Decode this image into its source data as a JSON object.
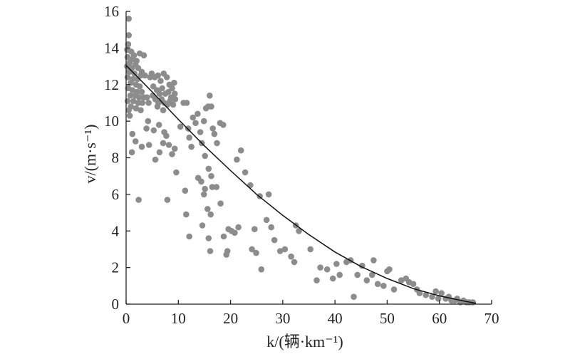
{
  "chart_data": {
    "type": "scatter",
    "xlabel": "k/(辆·km⁻¹)",
    "ylabel": "v/(m·s⁻¹)",
    "xlim": [
      0,
      70
    ],
    "ylim": [
      0,
      16
    ],
    "x_ticks": [
      "0",
      "10",
      "20",
      "30",
      "40",
      "50",
      "60",
      "70"
    ],
    "y_ticks": [
      "0",
      "2",
      "4",
      "6",
      "8",
      "10",
      "12",
      "14",
      "16"
    ],
    "grid": false,
    "colors": {
      "points": "#8c8c8c",
      "curve": "#111111",
      "axes": "#222222"
    },
    "series": [
      {
        "type": "scatter",
        "points": [
          [
            0.5,
            15.6
          ],
          [
            0.5,
            14.7
          ],
          [
            0.4,
            14.2
          ],
          [
            0.2,
            13.9
          ],
          [
            1.0,
            13.8
          ],
          [
            0.3,
            13.5
          ],
          [
            1.3,
            13.4
          ],
          [
            2.0,
            13.3
          ],
          [
            0.7,
            13.2
          ],
          [
            0.2,
            13.0
          ],
          [
            1.1,
            12.9
          ],
          [
            2.3,
            12.9
          ],
          [
            0.6,
            12.7
          ],
          [
            1.6,
            12.6
          ],
          [
            2.8,
            12.5
          ],
          [
            0.3,
            12.4
          ],
          [
            1.3,
            12.3
          ],
          [
            2.2,
            12.3
          ],
          [
            0.9,
            12.1
          ],
          [
            1.9,
            12.0
          ],
          [
            2.6,
            11.9
          ],
          [
            0.4,
            11.8
          ],
          [
            1.2,
            11.7
          ],
          [
            2.1,
            11.6
          ],
          [
            3.0,
            11.6
          ],
          [
            0.8,
            11.4
          ],
          [
            1.7,
            11.4
          ],
          [
            2.5,
            11.3
          ],
          [
            3.4,
            11.3
          ],
          [
            4.0,
            11.3
          ],
          [
            0.3,
            11.1
          ],
          [
            1.4,
            11.1
          ],
          [
            2.3,
            11.0
          ],
          [
            3.1,
            11.0
          ],
          [
            4.3,
            11.0
          ],
          [
            0.9,
            10.8
          ],
          [
            1.9,
            10.7
          ],
          [
            2.8,
            10.6
          ],
          [
            0.5,
            10.6
          ],
          [
            0.7,
            10.3
          ],
          [
            1.5,
            13.6
          ],
          [
            2.6,
            13.7
          ],
          [
            3.4,
            13.6
          ],
          [
            1.8,
            13.1
          ],
          [
            3.0,
            12.7
          ],
          [
            3.6,
            12.5
          ],
          [
            4.6,
            12.4
          ],
          [
            4.9,
            12.6
          ],
          [
            5.5,
            12.4
          ],
          [
            6.1,
            12.5
          ],
          [
            6.6,
            12.2
          ],
          [
            7.2,
            12.6
          ],
          [
            7.8,
            12.4
          ],
          [
            8.3,
            12.0
          ],
          [
            8.8,
            11.8
          ],
          [
            9.2,
            12.1
          ],
          [
            5.2,
            11.9
          ],
          [
            5.9,
            11.7
          ],
          [
            6.4,
            11.5
          ],
          [
            6.9,
            11.8
          ],
          [
            7.5,
            11.5
          ],
          [
            8.1,
            11.6
          ],
          [
            8.6,
            11.3
          ],
          [
            9.3,
            11.5
          ],
          [
            9.4,
            11.2
          ],
          [
            5.1,
            11.4
          ],
          [
            5.6,
            11.2
          ],
          [
            6.2,
            11.0
          ],
          [
            6.8,
            11.2
          ],
          [
            7.3,
            11.0
          ],
          [
            7.9,
            10.9
          ],
          [
            8.4,
            11.1
          ],
          [
            9.0,
            10.9
          ],
          [
            6.0,
            10.8
          ],
          [
            7.1,
            10.6
          ],
          [
            1.2,
            9.3
          ],
          [
            1.8,
            8.9
          ],
          [
            3.0,
            8.6
          ],
          [
            4.4,
            8.7
          ],
          [
            5.6,
            7.9
          ],
          [
            6.4,
            8.3
          ],
          [
            7.1,
            8.8
          ],
          [
            8.2,
            8.7
          ],
          [
            8.8,
            8.2
          ],
          [
            9.3,
            8.5
          ],
          [
            9.6,
            7.2
          ],
          [
            4.2,
            10.0
          ],
          [
            3.9,
            9.6
          ],
          [
            5.3,
            9.5
          ],
          [
            6.3,
            9.8
          ],
          [
            7.3,
            9.4
          ],
          [
            7.7,
            9.2
          ],
          [
            1.1,
            8.3
          ],
          [
            2.4,
            5.7
          ],
          [
            7.9,
            5.7
          ],
          [
            10.4,
            9.7
          ],
          [
            11.0,
            11.0
          ],
          [
            11.6,
            11.0
          ],
          [
            11.9,
            9.6
          ],
          [
            12.1,
            9.1
          ],
          [
            12.5,
            8.6
          ],
          [
            12.8,
            10.2
          ],
          [
            13.3,
            9.9
          ],
          [
            13.7,
            10.4
          ],
          [
            14.2,
            9.4
          ],
          [
            14.5,
            8.8
          ],
          [
            14.9,
            10.0
          ],
          [
            15.3,
            10.7
          ],
          [
            15.7,
            10.8
          ],
          [
            16.0,
            11.4
          ],
          [
            16.3,
            10.8
          ],
          [
            16.6,
            9.6
          ],
          [
            16.9,
            9.3
          ],
          [
            17.4,
            8.8
          ],
          [
            18.0,
            9.9
          ],
          [
            18.6,
            9.8
          ],
          [
            15.1,
            8.1
          ],
          [
            15.8,
            7.4
          ],
          [
            16.3,
            7.0
          ],
          [
            14.4,
            6.7
          ],
          [
            15.1,
            6.3
          ],
          [
            15.6,
            5.2
          ],
          [
            16.2,
            4.9
          ],
          [
            14.9,
            6.0
          ],
          [
            16.5,
            6.4
          ],
          [
            11.3,
            6.2
          ],
          [
            11.5,
            4.9
          ],
          [
            12.1,
            3.7
          ],
          [
            13.8,
            6.9
          ],
          [
            14.6,
            4.3
          ],
          [
            15.8,
            3.6
          ],
          [
            16.1,
            2.9
          ],
          [
            17.3,
            6.4
          ],
          [
            18.1,
            5.5
          ],
          [
            18.7,
            3.7
          ],
          [
            19.4,
            2.9
          ],
          [
            19.2,
            2.7
          ],
          [
            19.6,
            4.1
          ],
          [
            20.2,
            4.0
          ],
          [
            20.8,
            3.9
          ],
          [
            21.5,
            4.2
          ],
          [
            21.2,
            7.9
          ],
          [
            22.0,
            8.4
          ],
          [
            22.8,
            7.2
          ],
          [
            23.8,
            6.5
          ],
          [
            24.6,
            4.1
          ],
          [
            24.1,
            3.0
          ],
          [
            24.9,
            2.8
          ],
          [
            25.9,
            1.9
          ],
          [
            25.6,
            5.9
          ],
          [
            26.9,
            4.6
          ],
          [
            27.3,
            6.0
          ],
          [
            27.8,
            4.2
          ],
          [
            28.4,
            3.5
          ],
          [
            29.5,
            2.9
          ],
          [
            30.4,
            3.0
          ],
          [
            31.6,
            2.6
          ],
          [
            32.2,
            2.3
          ],
          [
            32.5,
            4.3
          ],
          [
            33.1,
            4.0
          ],
          [
            35.3,
            3.0
          ],
          [
            36.5,
            1.3
          ],
          [
            37.2,
            2.0
          ],
          [
            38.5,
            1.9
          ],
          [
            39.6,
            1.4
          ],
          [
            40.3,
            2.2
          ],
          [
            40.9,
            1.6
          ],
          [
            42.2,
            2.3
          ],
          [
            43.0,
            2.4
          ],
          [
            43.6,
            0.4
          ],
          [
            44.3,
            1.6
          ],
          [
            45.2,
            2.1
          ],
          [
            46.1,
            1.3
          ],
          [
            47.1,
            1.6
          ],
          [
            47.4,
            2.4
          ],
          [
            48.2,
            1.1
          ],
          [
            49.3,
            1.0
          ],
          [
            50.0,
            1.8
          ],
          [
            50.4,
            1.9
          ],
          [
            51.3,
            0.8
          ],
          [
            52.7,
            1.3
          ],
          [
            53.6,
            1.4
          ],
          [
            54.2,
            1.2
          ],
          [
            55.0,
            1.1
          ],
          [
            55.7,
            0.8
          ],
          [
            56.2,
            0.6
          ],
          [
            57.4,
            0.5
          ],
          [
            58.6,
            0.4
          ],
          [
            59.3,
            0.7
          ],
          [
            59.8,
            0.3
          ],
          [
            60.4,
            0.6
          ],
          [
            61.2,
            0.3
          ],
          [
            61.8,
            0.4
          ],
          [
            62.3,
            0.2
          ],
          [
            62.9,
            0.2
          ],
          [
            63.4,
            0.3
          ],
          [
            64.0,
            0.1
          ],
          [
            64.6,
            0.2
          ],
          [
            65.2,
            0.1
          ],
          [
            65.7,
            0.1
          ],
          [
            66.4,
            0.1
          ]
        ]
      },
      {
        "type": "line",
        "points": [
          [
            0,
            13.05
          ],
          [
            5,
            11.6
          ],
          [
            10,
            10.1
          ],
          [
            15,
            8.65
          ],
          [
            20,
            7.3
          ],
          [
            25,
            6.0
          ],
          [
            30,
            4.85
          ],
          [
            35,
            3.8
          ],
          [
            40,
            2.85
          ],
          [
            45,
            2.05
          ],
          [
            50,
            1.4
          ],
          [
            55,
            0.85
          ],
          [
            60,
            0.45
          ],
          [
            65,
            0.15
          ],
          [
            67,
            0.05
          ]
        ]
      }
    ]
  }
}
